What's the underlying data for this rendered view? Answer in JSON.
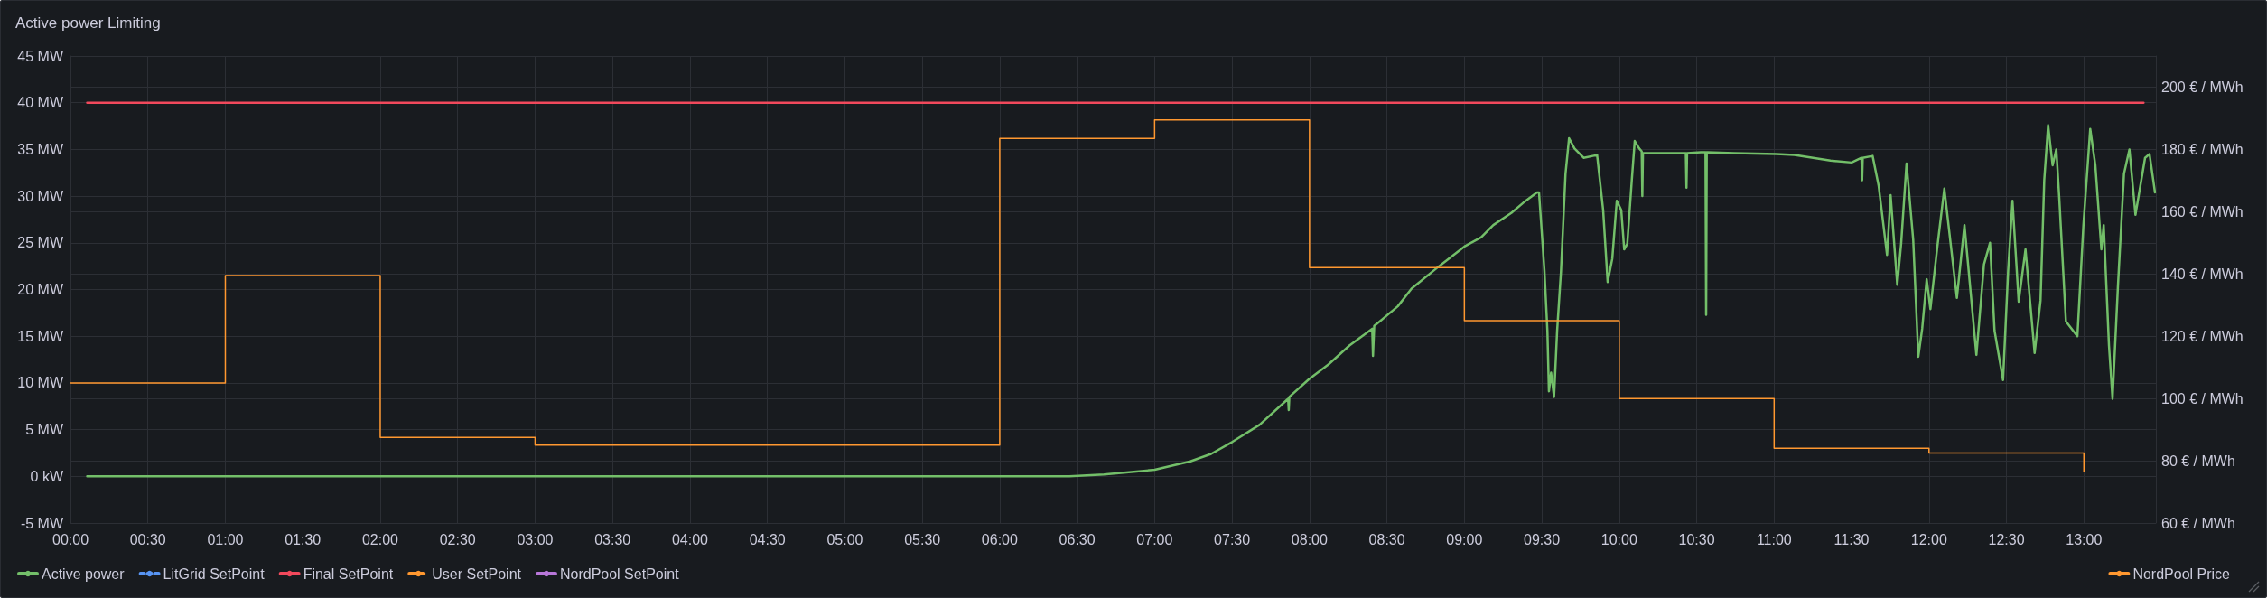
{
  "chart_data": {
    "type": "line",
    "title": "Active power Limiting",
    "xlim": [
      0,
      13.465
    ],
    "xticks": [
      {
        "value": 0,
        "label": "00:00"
      },
      {
        "value": 0.5,
        "label": "00:30"
      },
      {
        "value": 1,
        "label": "01:00"
      },
      {
        "value": 1.5,
        "label": "01:30"
      },
      {
        "value": 2,
        "label": "02:00"
      },
      {
        "value": 2.5,
        "label": "02:30"
      },
      {
        "value": 3,
        "label": "03:00"
      },
      {
        "value": 3.5,
        "label": "03:30"
      },
      {
        "value": 4,
        "label": "04:00"
      },
      {
        "value": 4.5,
        "label": "04:30"
      },
      {
        "value": 5,
        "label": "05:00"
      },
      {
        "value": 5.5,
        "label": "05:30"
      },
      {
        "value": 6,
        "label": "06:00"
      },
      {
        "value": 6.5,
        "label": "06:30"
      },
      {
        "value": 7,
        "label": "07:00"
      },
      {
        "value": 7.5,
        "label": "07:30"
      },
      {
        "value": 8,
        "label": "08:00"
      },
      {
        "value": 8.5,
        "label": "08:30"
      },
      {
        "value": 9,
        "label": "09:00"
      },
      {
        "value": 9.5,
        "label": "09:30"
      },
      {
        "value": 10,
        "label": "10:00"
      },
      {
        "value": 10.5,
        "label": "10:30"
      },
      {
        "value": 11,
        "label": "11:00"
      },
      {
        "value": 11.5,
        "label": "11:30"
      },
      {
        "value": 12,
        "label": "12:00"
      },
      {
        "value": 12.5,
        "label": "12:30"
      },
      {
        "value": 13,
        "label": "13:00"
      }
    ],
    "ylim": [
      -5,
      45
    ],
    "yticks": [
      {
        "value": -5,
        "label": "-5 MW"
      },
      {
        "value": 0,
        "label": "0 kW"
      },
      {
        "value": 5,
        "label": "5 MW"
      },
      {
        "value": 10,
        "label": "10 MW"
      },
      {
        "value": 15,
        "label": "15 MW"
      },
      {
        "value": 20,
        "label": "20 MW"
      },
      {
        "value": 25,
        "label": "25 MW"
      },
      {
        "value": 30,
        "label": "30 MW"
      },
      {
        "value": 35,
        "label": "35 MW"
      },
      {
        "value": 40,
        "label": "40 MW"
      },
      {
        "value": 45,
        "label": "45 MW"
      }
    ],
    "y2lim": [
      60,
      210
    ],
    "y2ticks": [
      {
        "value": 60,
        "label": "60 € / MWh"
      },
      {
        "value": 80,
        "label": "80 € / MWh"
      },
      {
        "value": 100,
        "label": "100 € / MWh"
      },
      {
        "value": 120,
        "label": "120 € / MWh"
      },
      {
        "value": 140,
        "label": "140 € / MWh"
      },
      {
        "value": 160,
        "label": "160 € / MWh"
      },
      {
        "value": 180,
        "label": "180 € / MWh"
      },
      {
        "value": 200,
        "label": "200 € / MWh"
      }
    ],
    "grid": true,
    "legend": "bottom",
    "marker": "none",
    "series": [
      {
        "name": "Active power",
        "color": "#73bf69",
        "x": [
          0.108,
          6.45,
          6.673,
          7.001,
          7.231,
          7.365,
          7.503,
          7.677,
          7.862,
          7.866,
          7.87,
          7.997,
          8.124,
          8.258,
          8.405,
          8.41,
          8.418,
          8.57,
          8.659,
          8.837,
          9.0,
          9.109,
          9.187,
          9.303,
          9.381,
          9.469,
          9.482,
          9.517,
          9.536,
          9.546,
          9.56,
          9.579,
          9.599,
          9.624,
          9.653,
          9.676,
          9.711,
          9.77,
          9.857,
          9.896,
          9.925,
          9.955,
          9.984,
          10.013,
          10.032,
          10.052,
          10.081,
          10.1,
          10.129,
          10.145,
          10.149,
          10.153,
          10.236,
          10.43,
          10.434,
          10.438,
          10.528,
          10.557,
          10.561,
          10.565,
          10.742,
          11.014,
          11.13,
          11.364,
          11.5,
          11.564,
          11.568,
          11.572,
          11.636,
          11.675,
          11.729,
          11.752,
          11.795,
          11.82,
          11.855,
          11.898,
          11.931,
          11.956,
          11.985,
          12.009,
          12.054,
          12.099,
          12.18,
          12.229,
          12.306,
          12.355,
          12.394,
          12.423,
          12.478,
          12.511,
          12.539,
          12.579,
          12.623,
          12.682,
          12.72,
          12.744,
          12.769,
          12.798,
          12.822,
          12.841,
          12.884,
          12.958,
          12.997,
          13.041,
          13.074,
          13.113,
          13.128,
          13.162,
          13.185,
          13.22,
          13.259,
          13.294,
          13.333,
          13.395,
          13.424,
          13.459
        ],
        "values": [
          0,
          0,
          0.2,
          0.7,
          1.6,
          2.4,
          3.7,
          5.5,
          8.3,
          7.1,
          8.5,
          10.4,
          12.0,
          14.0,
          15.8,
          12.9,
          16.1,
          18.2,
          20.1,
          22.5,
          24.6,
          25.6,
          26.9,
          28.2,
          29.3,
          30.4,
          30.4,
          22.0,
          15.6,
          9.1,
          11.1,
          8.5,
          15.6,
          22.0,
          32.4,
          36.2,
          35.1,
          34.1,
          34.4,
          28.5,
          20.8,
          23.3,
          29.5,
          28.5,
          24.3,
          24.9,
          31.7,
          35.9,
          35.1,
          34.8,
          30.0,
          34.6,
          34.6,
          34.6,
          30.9,
          34.6,
          34.7,
          34.7,
          17.3,
          34.7,
          34.6,
          34.5,
          34.4,
          33.8,
          33.6,
          34.1,
          31.7,
          34.1,
          34.3,
          31.1,
          23.7,
          30.1,
          20.5,
          24.9,
          33.5,
          25.3,
          12.8,
          15.8,
          21.1,
          17.9,
          24.6,
          30.8,
          19.1,
          26.9,
          13.0,
          22.7,
          25.0,
          15.6,
          10.3,
          22.0,
          29.5,
          18.7,
          24.3,
          13.2,
          18.8,
          31.7,
          37.6,
          33.3,
          35.0,
          29.8,
          16.6,
          15.0,
          26.9,
          37.2,
          33.3,
          24.3,
          26.9,
          14.0,
          8.3,
          20.4,
          32.4,
          35.0,
          28.0,
          34.1,
          34.5,
          30.4
        ]
      },
      {
        "name": "LitGrid SetPoint",
        "color": "#5794f2",
        "line_style": "dotted"
      },
      {
        "name": "Final SetPoint",
        "color": "#f2495c",
        "x": [
          0.108,
          13.385
        ],
        "values": [
          40,
          40
        ]
      },
      {
        "name": "User SetPoint",
        "color": "#ff9830",
        "line_style": "dashed"
      },
      {
        "name": "NordPool SetPoint",
        "color": "#b877d9"
      },
      {
        "name": "NordPool Price",
        "type": "step",
        "axis": "y2",
        "color": "#ff9830",
        "x": [
          0,
          1,
          2,
          3,
          4,
          5,
          6,
          7,
          8,
          9,
          10,
          11,
          12,
          13
        ],
        "values": [
          105,
          139.5,
          87.5,
          85,
          85,
          85,
          183.5,
          189.5,
          142,
          125,
          100,
          84,
          82.5,
          76.5
        ]
      }
    ]
  }
}
